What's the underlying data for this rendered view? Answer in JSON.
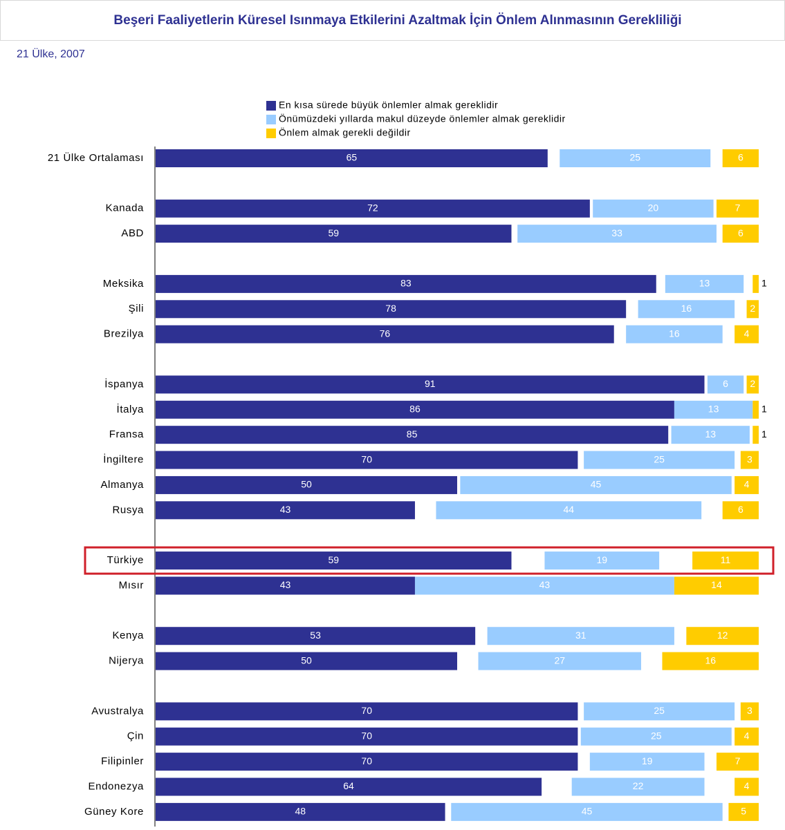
{
  "chart_data": {
    "type": "bar",
    "orientation": "horizontal",
    "stacked": true,
    "title": "Beşeri Faaliyetlerin Küresel Isınmaya Etkilerini Azaltmak İçin Önlem Alınmasının Gerekliliği",
    "subtitle": "21 Ülke, 2007",
    "highlight": "Türkiye",
    "xlim": [
      0,
      100
    ],
    "categories": [
      "21 Ülke Ortalaması",
      null,
      "Kanada",
      "ABD",
      null,
      "Meksika",
      "Şili",
      "Brezilya",
      null,
      "İspanya",
      "İtalya",
      "Fransa",
      "İngiltere",
      "Almanya",
      "Rusya",
      null,
      "Türkiye",
      "Mısır",
      null,
      "Kenya",
      "Nijerya",
      null,
      "Avustralya",
      "Çin",
      "Filipinler",
      "Endonezya",
      "Güney Kore"
    ],
    "series": [
      {
        "name": "En kısa sürede büyük önlemler almak gereklidir",
        "color": "#2e3192",
        "values": [
          65,
          null,
          72,
          59,
          null,
          83,
          78,
          76,
          null,
          91,
          86,
          85,
          70,
          50,
          43,
          null,
          59,
          43,
          null,
          53,
          50,
          null,
          70,
          70,
          70,
          64,
          48
        ]
      },
      {
        "name": "Önümüzdeki yıllarda makul düzeyde önlemler almak gereklidir",
        "color": "#99ccff",
        "values": [
          25,
          null,
          20,
          33,
          null,
          13,
          16,
          16,
          null,
          6,
          13,
          13,
          25,
          45,
          44,
          null,
          19,
          43,
          null,
          31,
          27,
          null,
          25,
          25,
          19,
          22,
          45
        ]
      },
      {
        "name": "Önlem almak gerekli değildir",
        "color": "#ffcc00",
        "values": [
          6,
          null,
          7,
          6,
          null,
          1,
          2,
          4,
          null,
          2,
          1,
          1,
          3,
          4,
          6,
          null,
          11,
          14,
          null,
          12,
          16,
          null,
          3,
          4,
          7,
          4,
          5
        ]
      }
    ]
  }
}
